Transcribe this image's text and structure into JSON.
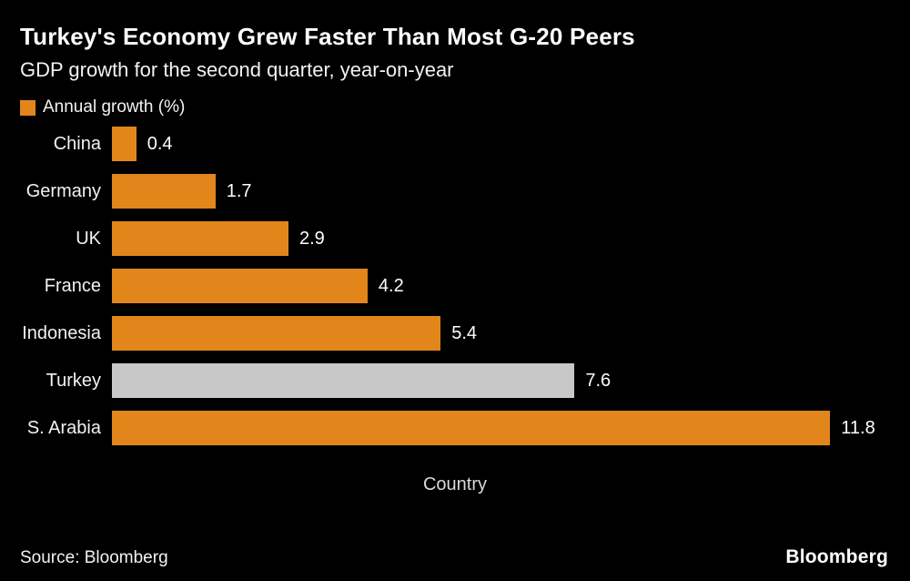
{
  "header": {
    "title": "Turkey's Economy Grew Faster Than Most G-20 Peers",
    "subtitle": "GDP growth for the second quarter, year-on-year"
  },
  "legend": {
    "label": "Annual growth (%)"
  },
  "footer": {
    "source": "Source:  Bloomberg",
    "brand": "Bloomberg"
  },
  "colors": {
    "background": "#000000",
    "bar": "#e2861c",
    "highlight_bar": "#c8c8c8",
    "text": "#ffffff"
  },
  "chart_data": {
    "type": "bar",
    "orientation": "horizontal",
    "title": "Turkey's Economy Grew Faster Than Most G-20 Peers",
    "subtitle": "GDP growth for the second quarter, year-on-year",
    "categories": [
      "China",
      "Germany",
      "UK",
      "France",
      "Indonesia",
      "Turkey",
      "S. Arabia"
    ],
    "values": [
      0.4,
      1.7,
      2.9,
      4.2,
      5.4,
      7.6,
      11.8
    ],
    "highlighted_category": "Turkey",
    "legend": [
      "Annual growth (%)"
    ],
    "xlabel": "Country",
    "ylabel": "",
    "value_axis_range": [
      0,
      12
    ],
    "grid": false,
    "legend_position": "top-left",
    "source": "Bloomberg"
  }
}
